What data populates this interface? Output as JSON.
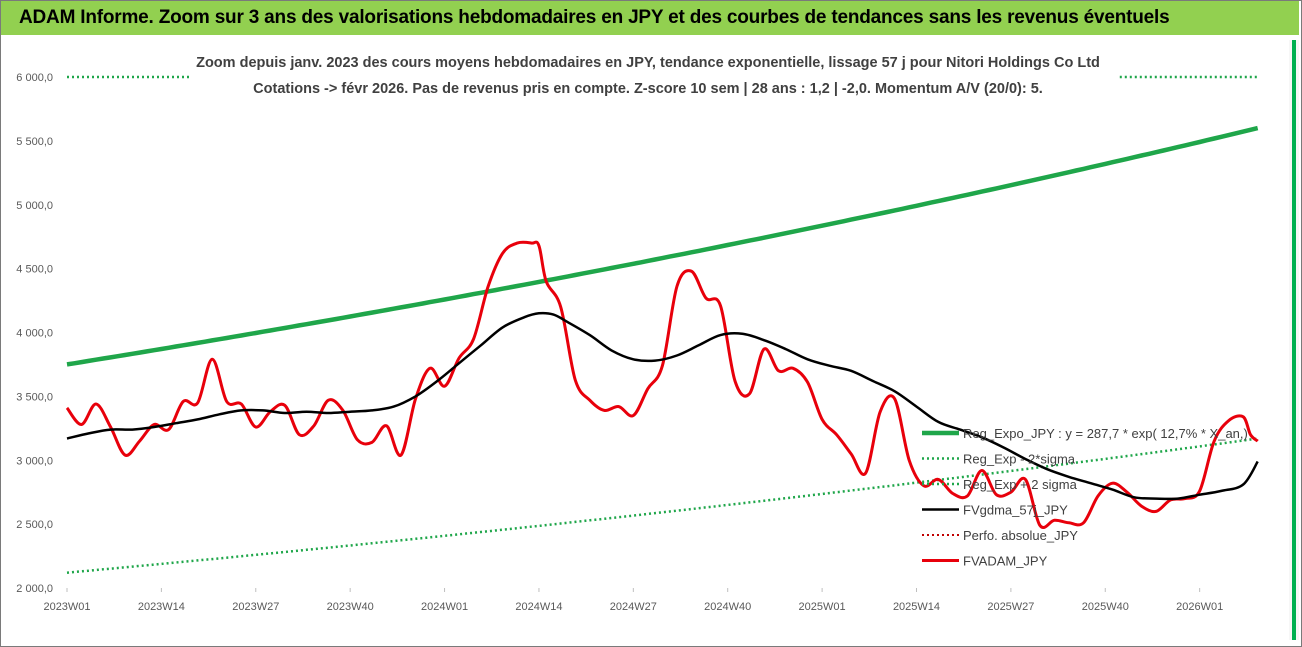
{
  "banner": {
    "title": "ADAM Informe. Zoom sur 3 ans des valorisations hebdomadaires en JPY et des courbes de tendances sans les revenus éventuels"
  },
  "colors": {
    "banner_bg": "#92d050",
    "reg_expo": "#1fa64a",
    "dotted_band": "#1fa64a",
    "fvgdma": "#000000",
    "perf_absolue": "#c00000",
    "fvadam": "#e8000b",
    "axis_text": "#595959"
  },
  "chart_data": {
    "type": "line",
    "title_line1": "Zoom depuis janv. 2023 des cours moyens hebdomadaires en JPY, tendance exponentielle, lissage 57 j pour Nitori Holdings Co Ltd",
    "title_line2": "Cotations -> févr 2026. Pas de revenus pris en compte. Z-score 10 sem | 28 ans : 1,2 | -2,0. Momentum A/V (20/0): 5.",
    "x_tick_labels": [
      "2023W01",
      "2023W14",
      "2023W27",
      "2023W40",
      "2024W01",
      "2024W14",
      "2024W27",
      "2024W40",
      "2025W01",
      "2025W14",
      "2025W27",
      "2025W40",
      "2026W01"
    ],
    "x_tick_weeks": [
      0,
      13,
      26,
      39,
      52,
      65,
      78,
      91,
      104,
      117,
      130,
      143,
      156
    ],
    "x_range": [
      0,
      165
    ],
    "ylim": [
      2000,
      6000
    ],
    "y_ticks": [
      "2 000,0",
      "2 500,0",
      "3 000,0",
      "3 500,0",
      "4 000,0",
      "4 500,0",
      "5 000,0",
      "5 500,0",
      "6 000,0"
    ],
    "y_tick_values": [
      2000,
      2500,
      3000,
      3500,
      4000,
      4500,
      5000,
      5500,
      6000
    ],
    "reg_expo": {
      "start": 3750,
      "end": 5600,
      "x_start": 0,
      "x_end": 164
    },
    "reg_minus_2sigma": {
      "start": 2120,
      "end": 3170,
      "x_start": 0,
      "x_end": 164
    },
    "reg_plus_2sigma_segments": [
      {
        "x_start": 0,
        "x_end": 17,
        "value": 6000
      },
      {
        "x_start": 145,
        "x_end": 164,
        "value": 6000
      }
    ],
    "fvgdma_x": [
      0,
      3,
      6,
      9,
      12,
      15,
      18,
      21,
      24,
      27,
      30,
      33,
      36,
      39,
      42,
      45,
      48,
      51,
      54,
      57,
      60,
      63,
      65,
      67,
      69,
      72,
      75,
      78,
      81,
      84,
      87,
      90,
      93,
      96,
      99,
      102,
      105,
      108,
      111,
      114,
      117,
      120,
      123,
      126,
      129,
      132,
      135,
      138,
      141,
      144,
      147,
      150,
      153,
      156,
      159,
      162,
      164
    ],
    "fvgdma": [
      3170,
      3210,
      3240,
      3240,
      3260,
      3290,
      3320,
      3360,
      3390,
      3390,
      3370,
      3380,
      3370,
      3380,
      3390,
      3420,
      3500,
      3620,
      3760,
      3900,
      4040,
      4120,
      4150,
      4140,
      4080,
      3980,
      3860,
      3790,
      3780,
      3820,
      3900,
      3980,
      3990,
      3940,
      3870,
      3790,
      3740,
      3700,
      3620,
      3540,
      3420,
      3300,
      3240,
      3180,
      3100,
      3010,
      2930,
      2870,
      2820,
      2770,
      2710,
      2700,
      2700,
      2730,
      2760,
      2810,
      2990
    ],
    "fvadam_x": [
      0,
      2,
      4,
      6,
      8,
      10,
      12,
      14,
      16,
      18,
      20,
      22,
      24,
      26,
      28,
      30,
      32,
      34,
      36,
      38,
      40,
      42,
      44,
      46,
      48,
      50,
      52,
      54,
      56,
      58,
      60,
      62,
      64,
      65,
      66,
      68,
      70,
      72,
      74,
      76,
      78,
      80,
      82,
      84,
      86,
      88,
      90,
      92,
      94,
      96,
      98,
      100,
      102,
      104,
      106,
      108,
      110,
      112,
      114,
      116,
      118,
      120,
      122,
      124,
      126,
      128,
      130,
      132,
      134,
      136,
      138,
      140,
      142,
      144,
      146,
      148,
      150,
      152,
      154,
      156,
      158,
      160,
      162,
      163,
      164
    ],
    "fvadam": [
      3410,
      3280,
      3440,
      3260,
      3040,
      3150,
      3280,
      3240,
      3460,
      3450,
      3790,
      3460,
      3440,
      3260,
      3380,
      3430,
      3200,
      3270,
      3470,
      3390,
      3160,
      3140,
      3270,
      3040,
      3480,
      3720,
      3580,
      3800,
      3950,
      4360,
      4620,
      4700,
      4700,
      4680,
      4400,
      4200,
      3630,
      3470,
      3390,
      3420,
      3350,
      3560,
      3740,
      4360,
      4480,
      4270,
      4210,
      3620,
      3520,
      3870,
      3700,
      3720,
      3610,
      3320,
      3200,
      3050,
      2900,
      3380,
      3480,
      3000,
      2800,
      2850,
      2740,
      2720,
      2920,
      2730,
      2750,
      2850,
      2490,
      2530,
      2510,
      2510,
      2720,
      2820,
      2750,
      2640,
      2600,
      2690,
      2700,
      2760,
      3150,
      3310,
      3340,
      3200,
      3150
    ]
  },
  "legend": [
    {
      "key": "reg_expo",
      "label": "Reg_Expo_JPY : y = 287,7 * exp( 12,7% *  X_an,)"
    },
    {
      "key": "reg_minus",
      "label": "Reg_Exp - 2*sigma"
    },
    {
      "key": "reg_plus",
      "label": "Reg_Exp + 2 sigma"
    },
    {
      "key": "fvgdma",
      "label": "FVgdma_57j_JPY"
    },
    {
      "key": "perf",
      "label": "Perfo. absolue_JPY"
    },
    {
      "key": "fvadam",
      "label": "FVADAM_JPY"
    }
  ]
}
